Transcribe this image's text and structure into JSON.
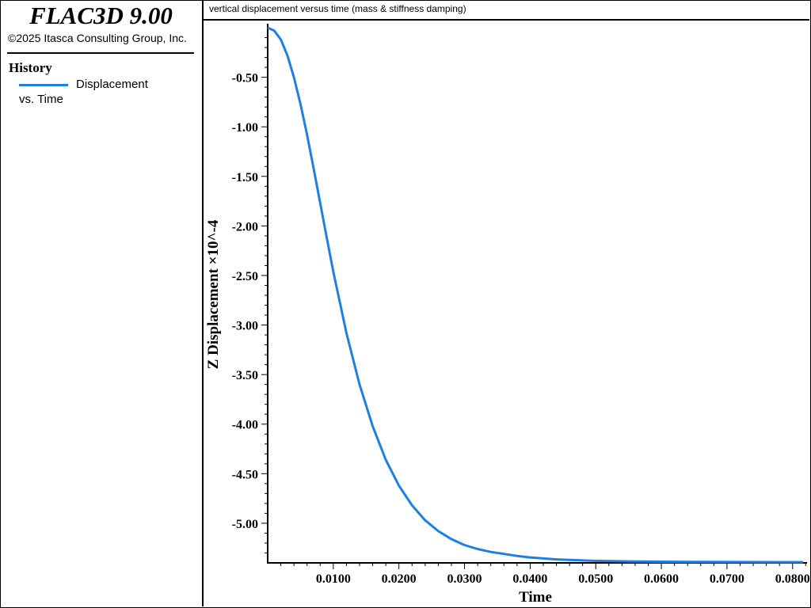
{
  "app": {
    "title": "FLAC3D 9.00",
    "copyright": "©2025 Itasca Consulting Group, Inc."
  },
  "legend": {
    "heading": "History",
    "entry_line1": "Displacement",
    "entry_line2": "vs. Time",
    "color": "#1f7fe0"
  },
  "chart_data": {
    "type": "line",
    "title": "vertical displacement versus time (mass & stiffness damping)",
    "xlabel": "Time",
    "ylabel": "Z Displacement  ×10^-4",
    "xlim": [
      0,
      0.0816
    ],
    "ylim": [
      -5.4,
      0.04
    ],
    "x_ticks": [
      "0.0100",
      "0.0200",
      "0.0300",
      "0.0400",
      "0.0500",
      "0.0600",
      "0.0700",
      "0.0800"
    ],
    "y_ticks": [
      "-0.50",
      "-1.00",
      "-1.50",
      "-2.00",
      "-2.50",
      "-3.00",
      "-3.50",
      "-4.00",
      "-4.50",
      "-5.00"
    ],
    "grid": false,
    "series": [
      {
        "name": "Displacement vs. Time",
        "color": "#1f7fe0",
        "x": [
          0,
          0.001,
          0.002,
          0.003,
          0.004,
          0.005,
          0.006,
          0.007,
          0.008,
          0.009,
          0.01,
          0.012,
          0.014,
          0.016,
          0.018,
          0.02,
          0.022,
          0.024,
          0.026,
          0.028,
          0.03,
          0.032,
          0.034,
          0.036,
          0.038,
          0.04,
          0.042,
          0.044,
          0.046,
          0.048,
          0.05,
          0.055,
          0.06,
          0.065,
          0.07,
          0.075,
          0.08,
          0.0816
        ],
        "y": [
          0,
          -0.03,
          -0.12,
          -0.28,
          -0.5,
          -0.77,
          -1.08,
          -1.42,
          -1.77,
          -2.12,
          -2.46,
          -3.08,
          -3.6,
          -4.02,
          -4.36,
          -4.62,
          -4.82,
          -4.97,
          -5.08,
          -5.16,
          -5.22,
          -5.26,
          -5.29,
          -5.31,
          -5.33,
          -5.345,
          -5.355,
          -5.365,
          -5.37,
          -5.375,
          -5.38,
          -5.385,
          -5.388,
          -5.39,
          -5.391,
          -5.392,
          -5.393,
          -5.393
        ]
      }
    ]
  }
}
